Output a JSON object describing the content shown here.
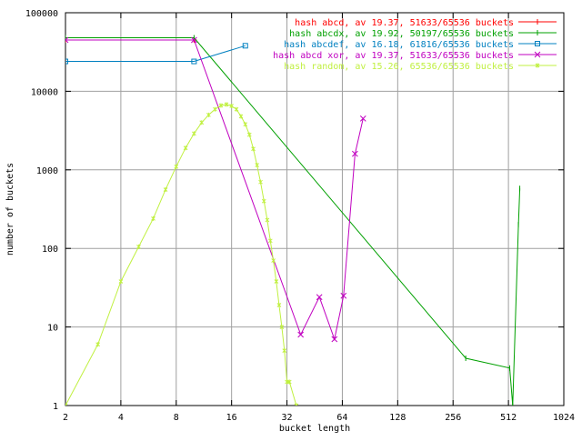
{
  "chart_data": {
    "type": "line",
    "title": "",
    "xlabel": "bucket length",
    "ylabel": "number of buckets",
    "x_scale": "log2",
    "y_scale": "log10",
    "xlim": [
      2,
      1024
    ],
    "ylim": [
      1,
      100000
    ],
    "grid": true,
    "legend_position": "top-right",
    "x_ticks": [
      "2",
      "4",
      "8",
      "16",
      "32",
      "64",
      "128",
      "256",
      "512",
      "1024"
    ],
    "y_ticks": [
      "1",
      "10",
      "100",
      "1000",
      "10000",
      "100000"
    ],
    "series": [
      {
        "name": "hash abcd, av 19.37, 51633/65536 buckets",
        "color": "#ff0000",
        "marker": "plus",
        "points": [
          [
            2,
            45000
          ],
          [
            10,
            45000
          ]
        ]
      },
      {
        "name": "hash abcdx, av 19.92, 50197/65536 buckets",
        "color": "#00a000",
        "marker": "vbar",
        "points": [
          [
            2,
            48000
          ],
          [
            10,
            48000
          ],
          [
            300,
            4
          ],
          [
            520,
            3
          ],
          [
            540,
            1
          ],
          [
            580,
            200
          ],
          [
            590,
            580
          ]
        ]
      },
      {
        "name": "hash abcdef, av 16.18, 61816/65536 buckets",
        "color": "#0080c0",
        "marker": "square",
        "points": [
          [
            2,
            24000
          ],
          [
            10,
            24000
          ],
          [
            19,
            38000
          ]
        ]
      },
      {
        "name": "hash abcd xor, av 19.37, 51633/65536 buckets",
        "color": "#c000c0",
        "marker": "x",
        "points": [
          [
            2,
            45000
          ],
          [
            10,
            45000
          ],
          [
            38,
            8
          ],
          [
            48,
            24
          ],
          [
            58,
            7
          ],
          [
            65,
            25
          ],
          [
            75,
            1600
          ],
          [
            83,
            4500
          ]
        ]
      },
      {
        "name": "hash random, av 15.26, 65536/65536 buckets",
        "color": "#c0f040",
        "marker": "star",
        "points": [
          [
            2,
            1
          ],
          [
            3,
            6
          ],
          [
            4,
            38
          ],
          [
            5,
            105
          ],
          [
            6,
            240
          ],
          [
            7,
            560
          ],
          [
            8,
            1100
          ],
          [
            9,
            1900
          ],
          [
            10,
            2900
          ],
          [
            11,
            4000
          ],
          [
            12,
            5000
          ],
          [
            13,
            5900
          ],
          [
            14,
            6600
          ],
          [
            15,
            6800
          ],
          [
            16,
            6500
          ],
          [
            17,
            5900
          ],
          [
            18,
            4800
          ],
          [
            19,
            3800
          ],
          [
            20,
            2800
          ],
          [
            21,
            1850
          ],
          [
            22,
            1150
          ],
          [
            23,
            700
          ],
          [
            24,
            400
          ],
          [
            25,
            230
          ],
          [
            26,
            125
          ],
          [
            27,
            70
          ],
          [
            28,
            38
          ],
          [
            29,
            19
          ],
          [
            30,
            10
          ],
          [
            31,
            5
          ],
          [
            32,
            2
          ],
          [
            33,
            2
          ],
          [
            36,
            1
          ]
        ]
      }
    ]
  }
}
